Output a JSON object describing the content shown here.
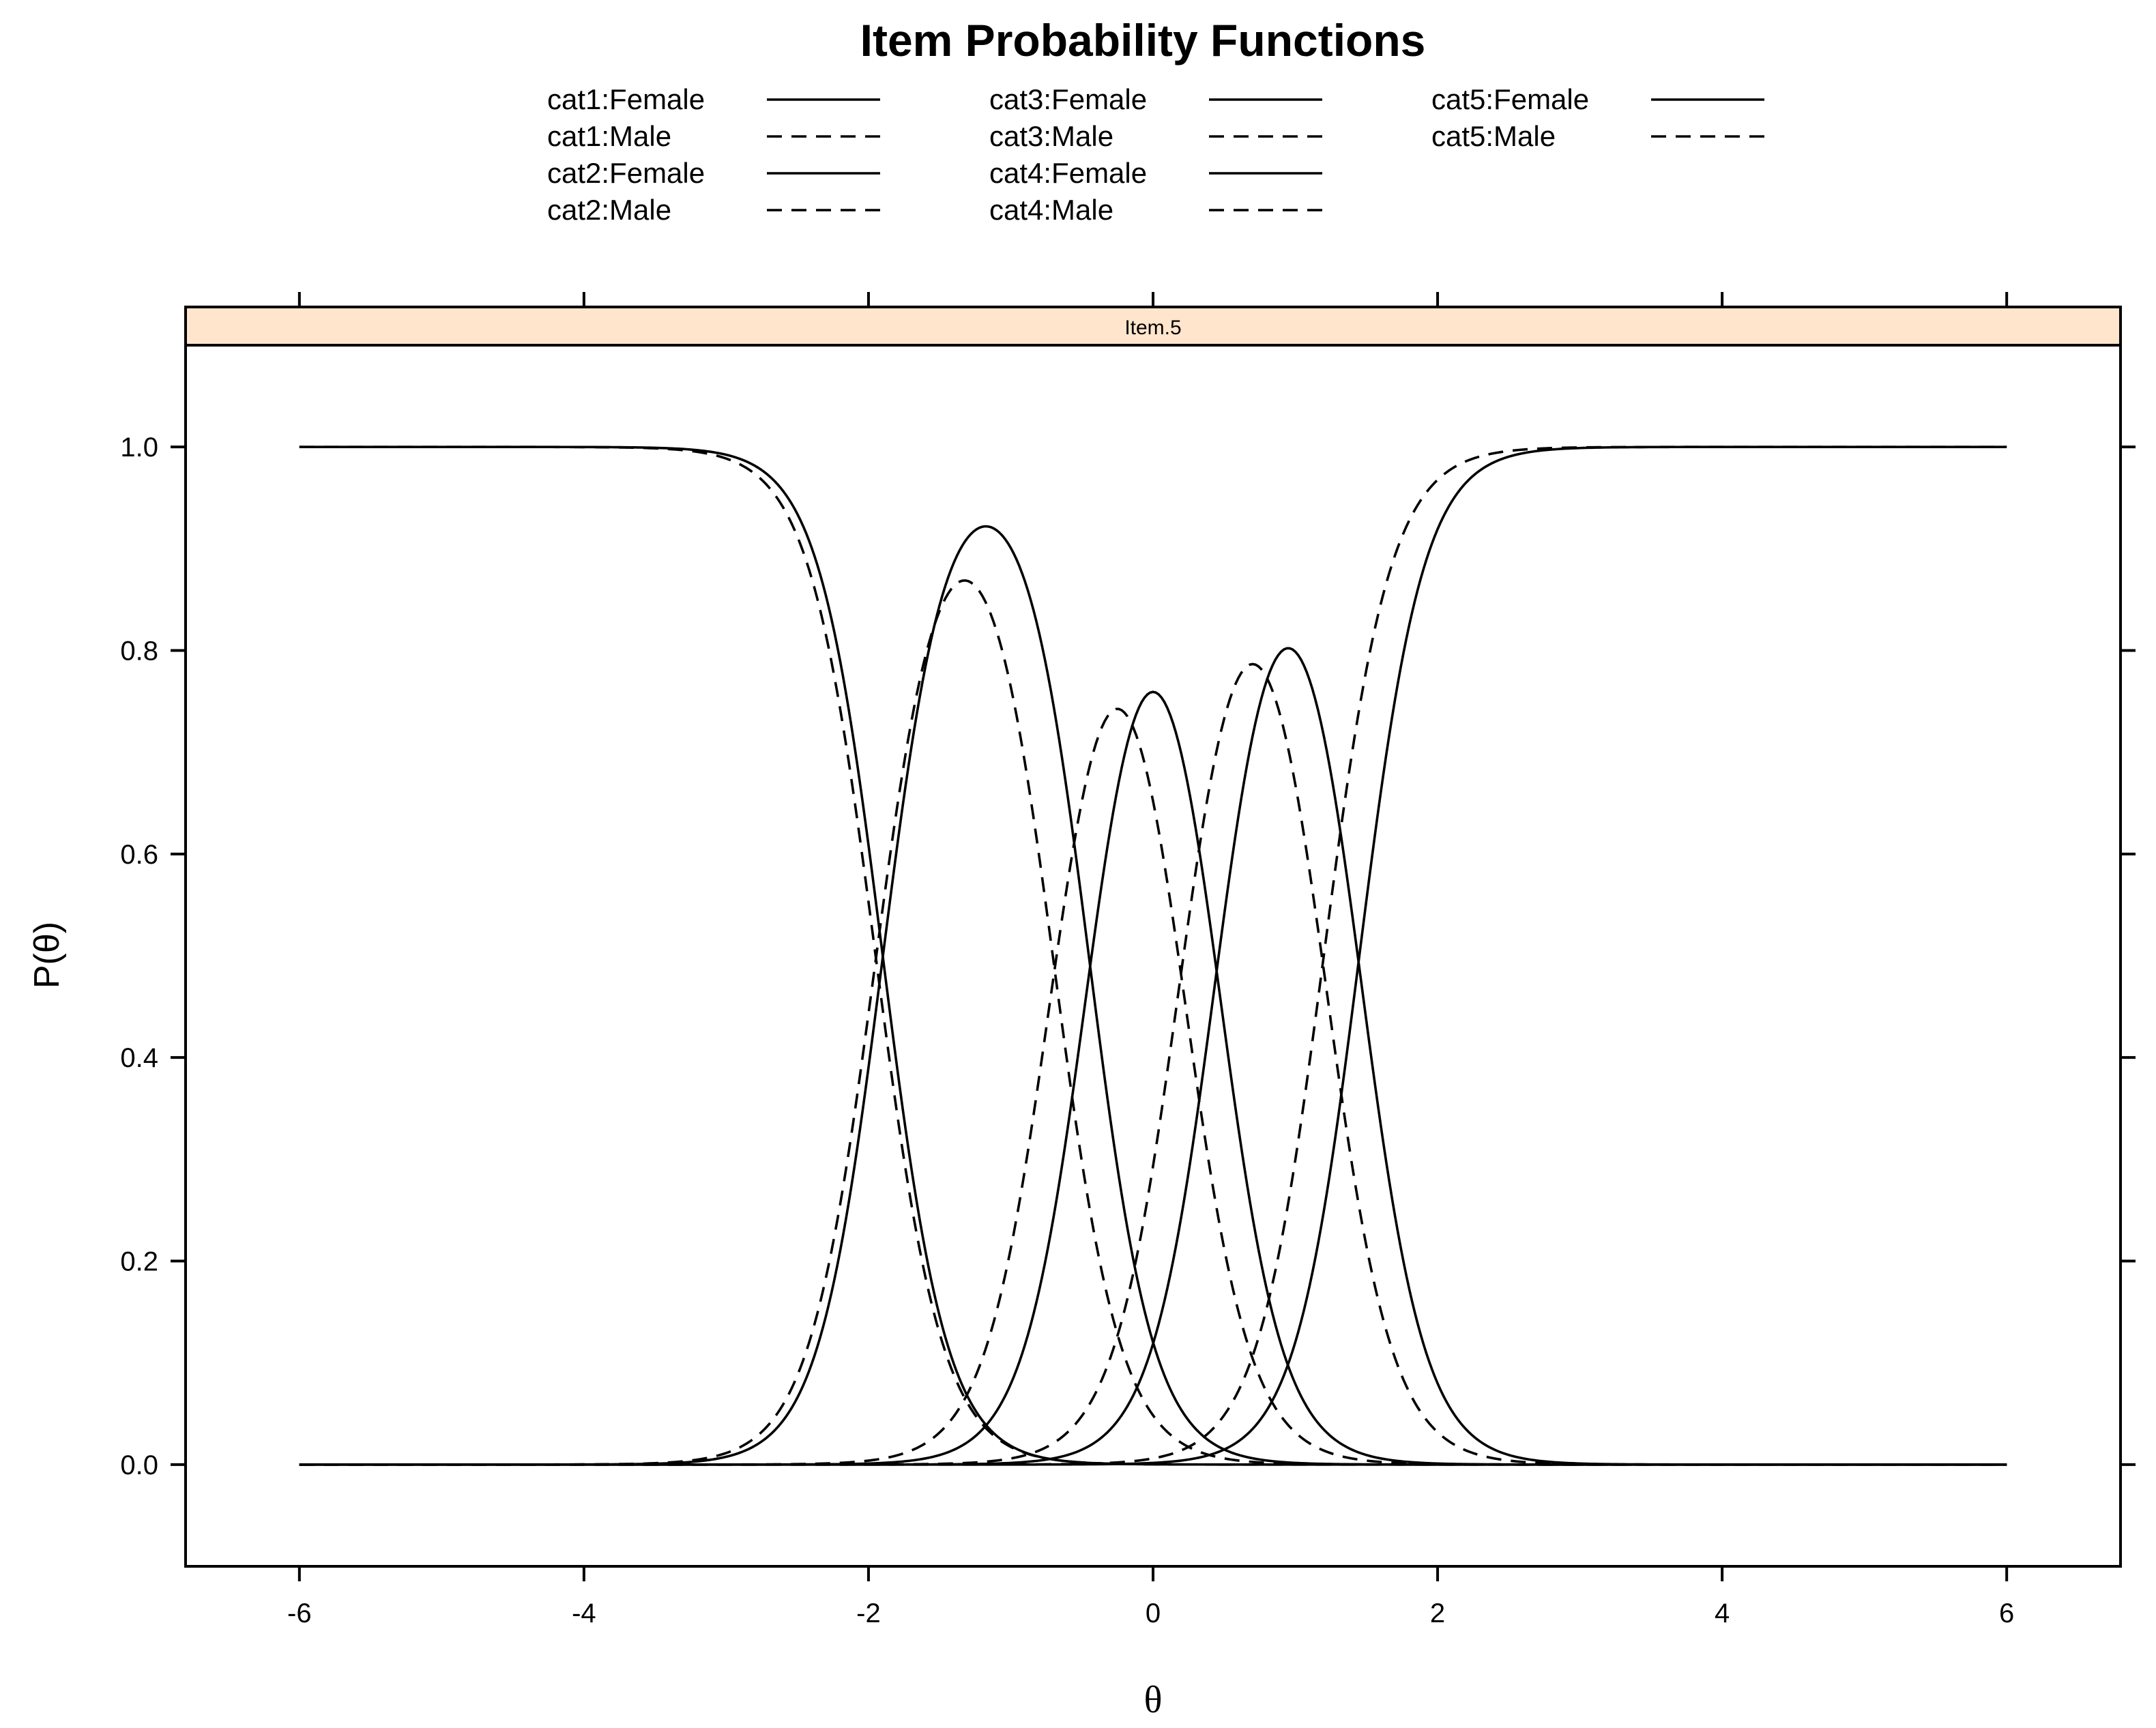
{
  "chart_data": {
    "type": "line",
    "title": "Item Probability Functions",
    "panel": "Item.5",
    "xlabel": "θ",
    "ylabel": "P(θ)",
    "xlim": [
      -6.8,
      6.8
    ],
    "ylim": [
      -0.1,
      1.1
    ],
    "x_ticks": [
      -6,
      -4,
      -2,
      0,
      2,
      4,
      6
    ],
    "x_tick_labels": [
      "-6",
      "-4",
      "-2",
      "0",
      "2",
      "4",
      "6"
    ],
    "y_ticks": [
      0.0,
      0.2,
      0.4,
      0.6,
      0.8,
      1.0
    ],
    "y_tick_labels": [
      "0.0",
      "0.2",
      "0.4",
      "0.6",
      "0.8",
      "1.0"
    ],
    "legend_position": "top",
    "colors": {
      "strip": "#ffe5cc",
      "line": "#000000"
    },
    "model": "graded response; series values derived from discrimination a and thresholds b",
    "x_range": [
      -6,
      6
    ],
    "groups": [
      {
        "name": "Female",
        "a": 2.6,
        "b": [
          -1.9,
          -0.45,
          0.45,
          1.45
        ],
        "dash": "solid"
      },
      {
        "name": "Male",
        "a": 2.5,
        "b": [
          -1.95,
          -0.7,
          0.2,
          1.2
        ],
        "dash": "dashed"
      }
    ],
    "series": [
      {
        "name": "cat1:Female",
        "category": 1,
        "group": "Female"
      },
      {
        "name": "cat1:Male",
        "category": 1,
        "group": "Male"
      },
      {
        "name": "cat2:Female",
        "category": 2,
        "group": "Female"
      },
      {
        "name": "cat2:Male",
        "category": 2,
        "group": "Male"
      },
      {
        "name": "cat3:Female",
        "category": 3,
        "group": "Female"
      },
      {
        "name": "cat3:Male",
        "category": 3,
        "group": "Male"
      },
      {
        "name": "cat4:Female",
        "category": 4,
        "group": "Female"
      },
      {
        "name": "cat4:Male",
        "category": 4,
        "group": "Male"
      },
      {
        "name": "cat5:Female",
        "category": 5,
        "group": "Female"
      },
      {
        "name": "cat5:Male",
        "category": 5,
        "group": "Male"
      }
    ]
  }
}
